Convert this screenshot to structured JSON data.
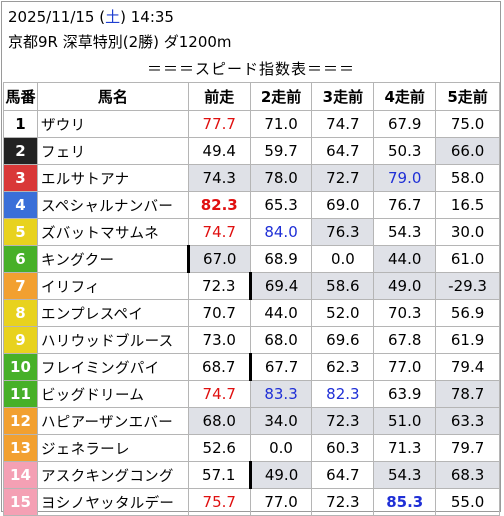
{
  "header": {
    "date": "2025/11/15",
    "dow": "土",
    "time": "14:35",
    "race": "京都9R 深草特別(2勝) ダ1200m"
  },
  "banner": "＝＝＝スピード指数表＝＝＝",
  "columns": [
    "馬番",
    "馬名",
    "前走",
    "2走前",
    "3走前",
    "4走前",
    "5走前"
  ],
  "colors": {
    "frame_colors": [
      "#ffffff",
      "#222222",
      "#d93838",
      "#3a6fd8",
      "#e8d21e",
      "#47b028",
      "#f2a030",
      "#f4a0b4"
    ],
    "red_text": "#e01010",
    "blue_text": "#1f2fd6",
    "shade": "#dfe1e7"
  },
  "rows": [
    {
      "num": "1",
      "name": "ザウリ",
      "vals": [
        "77.7",
        "71.0",
        "74.7",
        "67.9",
        "75.0"
      ],
      "red": [
        0
      ],
      "blue": [],
      "bold": [],
      "shade": [],
      "bar": []
    },
    {
      "num": "2",
      "name": "フェリ",
      "vals": [
        "49.4",
        "59.7",
        "64.7",
        "50.3",
        "66.0"
      ],
      "red": [],
      "blue": [],
      "bold": [],
      "shade": [
        4
      ],
      "bar": []
    },
    {
      "num": "3",
      "name": "エルサトアナ",
      "vals": [
        "74.3",
        "78.0",
        "72.7",
        "79.0",
        "58.0"
      ],
      "red": [],
      "blue": [
        3
      ],
      "bold": [],
      "shade": [
        0,
        1,
        2,
        3
      ],
      "bar": []
    },
    {
      "num": "4",
      "name": "スペシャルナンバー",
      "vals": [
        "82.3",
        "65.3",
        "69.0",
        "76.7",
        "16.5"
      ],
      "red": [
        0
      ],
      "blue": [],
      "bold": [
        0
      ],
      "shade": [],
      "bar": []
    },
    {
      "num": "5",
      "name": "ズバットマサムネ",
      "vals": [
        "74.7",
        "84.0",
        "76.3",
        "54.3",
        "30.0"
      ],
      "red": [
        0
      ],
      "blue": [
        1
      ],
      "bold": [],
      "shade": [
        2
      ],
      "bar": []
    },
    {
      "num": "6",
      "name": "キングクー",
      "vals": [
        "67.0",
        "68.9",
        "0.0",
        "44.0",
        "61.0"
      ],
      "red": [],
      "blue": [],
      "bold": [],
      "shade": [
        0,
        3
      ],
      "bar": [
        0
      ]
    },
    {
      "num": "7",
      "name": "イリフィ",
      "vals": [
        "72.3",
        "69.4",
        "58.6",
        "49.0",
        "-29.3"
      ],
      "red": [],
      "blue": [],
      "bold": [],
      "shade": [
        1,
        2,
        3,
        4
      ],
      "bar": [
        1
      ]
    },
    {
      "num": "8",
      "name": "エンプレスペイ",
      "vals": [
        "70.7",
        "44.0",
        "52.0",
        "70.3",
        "56.9"
      ],
      "red": [],
      "blue": [],
      "bold": [],
      "shade": [],
      "bar": []
    },
    {
      "num": "9",
      "name": "ハリウッドブルース",
      "vals": [
        "73.0",
        "68.0",
        "69.6",
        "67.8",
        "61.9"
      ],
      "red": [],
      "blue": [],
      "bold": [],
      "shade": [],
      "bar": []
    },
    {
      "num": "10",
      "name": "フレイミングパイ",
      "vals": [
        "68.7",
        "67.7",
        "62.3",
        "77.0",
        "79.4"
      ],
      "red": [],
      "blue": [],
      "bold": [],
      "shade": [],
      "bar": [
        1
      ]
    },
    {
      "num": "11",
      "name": "ビッグドリーム",
      "vals": [
        "74.7",
        "83.3",
        "82.3",
        "63.9",
        "78.7"
      ],
      "red": [
        0
      ],
      "blue": [
        1,
        2
      ],
      "bold": [],
      "shade": [
        1,
        4
      ],
      "bar": []
    },
    {
      "num": "12",
      "name": "ハピアーザンエバー",
      "vals": [
        "68.0",
        "34.0",
        "72.3",
        "51.0",
        "63.3"
      ],
      "red": [],
      "blue": [],
      "bold": [],
      "shade": [
        0,
        1,
        2,
        3,
        4
      ],
      "bar": []
    },
    {
      "num": "13",
      "name": "ジェネラーレ",
      "vals": [
        "52.6",
        "0.0",
        "60.3",
        "71.3",
        "79.7"
      ],
      "red": [],
      "blue": [],
      "bold": [],
      "shade": [],
      "bar": []
    },
    {
      "num": "14",
      "name": "アスクキングコング",
      "vals": [
        "57.1",
        "49.0",
        "64.7",
        "54.3",
        "68.3"
      ],
      "red": [],
      "blue": [],
      "bold": [],
      "shade": [
        1,
        3,
        4
      ],
      "bar": [
        1
      ]
    },
    {
      "num": "15",
      "name": "ヨシノヤッタルデー",
      "vals": [
        "75.7",
        "77.0",
        "72.3",
        "85.3",
        "55.0"
      ],
      "red": [
        0
      ],
      "blue": [
        3
      ],
      "bold": [
        3
      ],
      "shade": [],
      "bar": []
    }
  ]
}
